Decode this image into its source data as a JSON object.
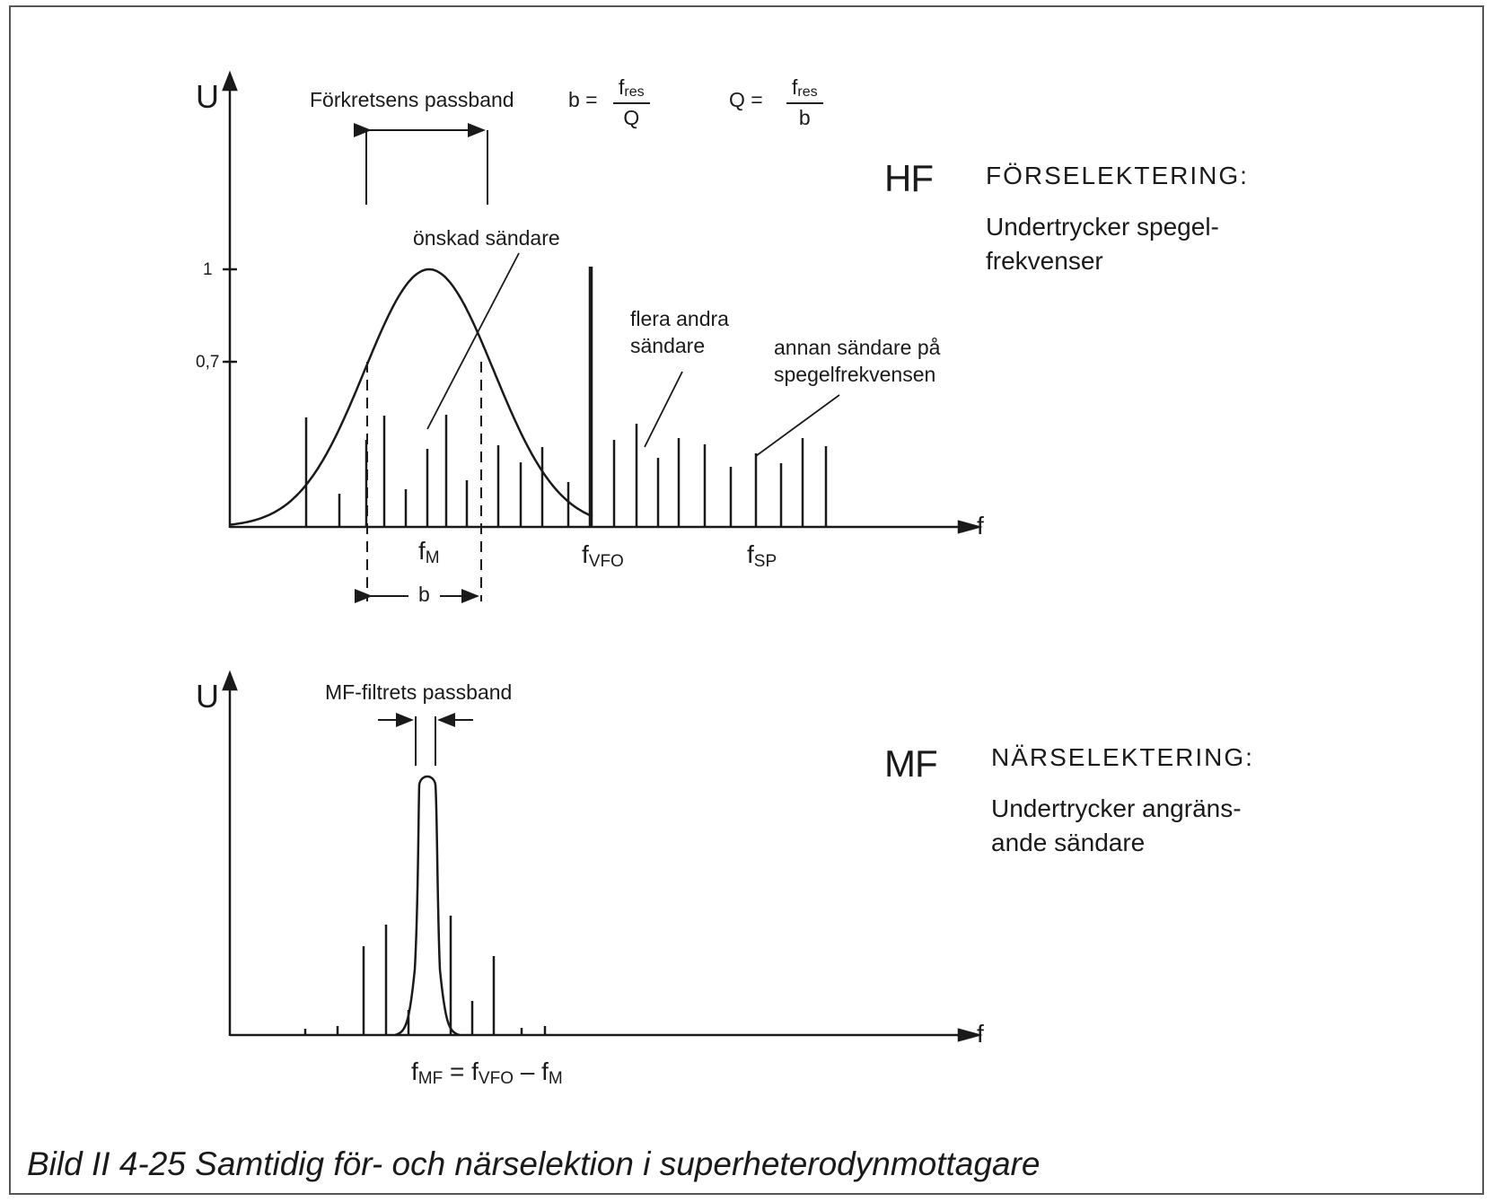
{
  "caption": "Bild II 4-25  Samtidig för- och närselektion i superheterodynmottagare",
  "top_panel": {
    "y_axis_label": "U",
    "x_axis_label": "f",
    "tick_1": "1",
    "tick_07": "0,7",
    "passband_label": "Förkretsens passband",
    "formula_b_lhs": "b =",
    "formula_b_num": "f",
    "formula_b_num_sub": "res",
    "formula_b_den": "Q",
    "formula_q_lhs": "Q =",
    "formula_q_num": "f",
    "formula_q_num_sub": "res",
    "formula_q_den": "b",
    "annotation_wanted": "önskad sändare",
    "annotation_others_1": "flera andra",
    "annotation_others_2": "sändare",
    "annotation_image_1": "annan sändare på",
    "annotation_image_2": "spegelfrekvensen",
    "f_m": "f",
    "f_m_sub": "M",
    "f_vfo": "f",
    "f_vfo_sub": "VFO",
    "f_sp": "f",
    "f_sp_sub": "SP",
    "bandwidth_label": "b",
    "section_tag": "HF",
    "section_heading": "FÖRSELEKTERING:",
    "section_desc_1": "Undertrycker spegel-",
    "section_desc_2": "frekvenser"
  },
  "bottom_panel": {
    "y_axis_label": "U",
    "x_axis_label": "f",
    "passband_label": "MF-filtrets passband",
    "formula_fmf": "f",
    "formula_fmf_sub": "MF",
    "formula_eq": "=",
    "formula_fvfo": "f",
    "formula_fvfo_sub": "VFO",
    "formula_minus": "–",
    "formula_fm": "f",
    "formula_fm_sub": "M",
    "section_tag": "MF",
    "section_heading": "NÄRSELEKTERING:",
    "section_desc_1": "Undertrycker angräns-",
    "section_desc_2": "ande sändare"
  },
  "colors": {
    "ink": "#1a1a1a",
    "frame": "#555555",
    "background": "#ffffff"
  }
}
